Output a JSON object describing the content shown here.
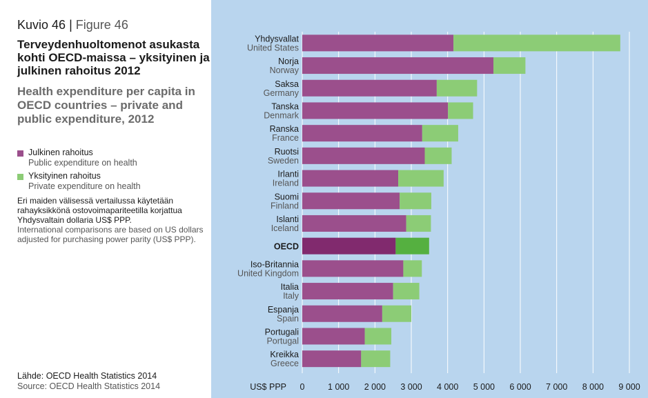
{
  "header": {
    "figure_fi": "Kuvio 46",
    "separator": "|",
    "figure_en": "Figure 46",
    "title_fi": "Terveydenhuoltomenot asukasta kohti OECD-maissa – yksityinen ja julkinen rahoitus 2012",
    "title_en": "Health expenditure per capita in OECD countries – private and public expenditure, 2012"
  },
  "legend": {
    "public_fi": "Julkinen rahoitus",
    "public_en": "Public expenditure on health",
    "private_fi": "Yksityinen rahoitus",
    "private_en": "Private expenditure on health"
  },
  "note": {
    "fi": "Eri maiden välisessä vertailussa käytetään rahayksikkönä ostovoimapariteetilla korjattua Yhdysvaltain dollaria US$ PPP.",
    "en": "International comparisons are based on US dollars adjusted for purchasing power parity (US$ PPP)."
  },
  "source": {
    "fi": "Lähde: OECD Health Statistics 2014",
    "en": "Source: OECD Health Statistics 2014"
  },
  "colors": {
    "public": "#9b4f8c",
    "private": "#8ccc76",
    "oecd_public": "#812a6e",
    "oecd_private": "#55b040",
    "panel_bg": "#b9d5ee",
    "grid": "#ffffff"
  },
  "chart_data": {
    "type": "bar",
    "orientation": "horizontal",
    "stacked": true,
    "unit_label": "US$ PPP",
    "xlim": [
      0,
      9000
    ],
    "xticks": [
      0,
      1000,
      2000,
      3000,
      4000,
      5000,
      6000,
      7000,
      8000,
      9000
    ],
    "xtick_labels": [
      "0",
      "1 000",
      "2 000",
      "3 000",
      "4 000",
      "5 000",
      "6 000",
      "7 000",
      "8 000",
      "9 000"
    ],
    "categories_fi": [
      "Yhdysvallat",
      "Norja",
      "Saksa",
      "Tanska",
      "Ranska",
      "Ruotsi",
      "Irlanti",
      "Suomi",
      "Islanti",
      "OECD",
      "Iso-Britannia",
      "Italia",
      "Espanja",
      "Portugali",
      "Kreikka"
    ],
    "categories_en": [
      "United States",
      "Norway",
      "Germany",
      "Denmark",
      "France",
      "Sweden",
      "Ireland",
      "Finland",
      "Iceland",
      "",
      "United Kingdom",
      "Italy",
      "Spain",
      "Portugal",
      "Greece"
    ],
    "highlight": "OECD",
    "series": [
      {
        "name": "Julkinen rahoitus / Public expenditure on health",
        "values": [
          4160,
          5260,
          3700,
          4010,
          3300,
          3370,
          2640,
          2680,
          2860,
          2570,
          2780,
          2500,
          2200,
          1720,
          1620
        ]
      },
      {
        "name": "Yksityinen rahoitus / Private expenditure on health",
        "values": [
          4590,
          880,
          1110,
          690,
          990,
          740,
          1250,
          870,
          680,
          920,
          510,
          720,
          800,
          730,
          800
        ]
      }
    ]
  }
}
